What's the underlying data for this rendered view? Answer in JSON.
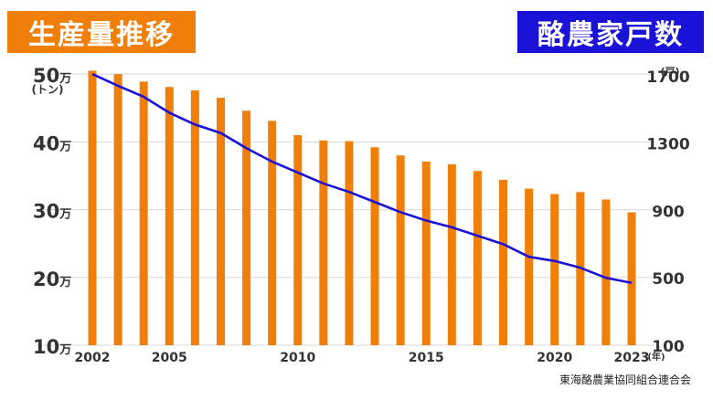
{
  "titles": {
    "left": "生産量推移",
    "right": "酪農家戸数"
  },
  "units": {
    "left": "(トン)",
    "right": "(戸)",
    "x": "(年)",
    "left_tick_suffix": "万"
  },
  "source": "東海酪農業協同組合連合会",
  "colors": {
    "bar": "#f07f0a",
    "line": "#1a12d6",
    "grid": "#d8d8d8",
    "left_title_bg": "#f07f0a",
    "right_title_bg": "#1a12d6"
  },
  "chart_data": {
    "type": "bar+line",
    "x": [
      2002,
      2003,
      2004,
      2005,
      2006,
      2007,
      2008,
      2009,
      2010,
      2011,
      2012,
      2013,
      2014,
      2015,
      2016,
      2017,
      2018,
      2019,
      2020,
      2021,
      2022,
      2023
    ],
    "x_tick_labels": [
      "2002",
      "2005",
      "2010",
      "2015",
      "2020",
      "2023"
    ],
    "series": [
      {
        "type": "bar",
        "axis": "left",
        "values": [
          50.5,
          50.0,
          48.9,
          48.1,
          47.6,
          46.5,
          44.6,
          43.1,
          41.0,
          40.2,
          40.1,
          39.2,
          38.0,
          37.1,
          36.7,
          35.7,
          34.4,
          33.1,
          32.3,
          32.6,
          31.5,
          29.6
        ]
      },
      {
        "type": "line",
        "axis": "right",
        "values": [
          1710,
          1640,
          1575,
          1480,
          1410,
          1360,
          1270,
          1190,
          1125,
          1060,
          1010,
          950,
          890,
          840,
          800,
          750,
          700,
          625,
          600,
          560,
          500,
          470
        ]
      }
    ],
    "y_left": {
      "ticks": [
        50,
        40,
        30,
        20,
        10
      ],
      "range": [
        10,
        51.5
      ]
    },
    "y_right": {
      "ticks": [
        1700,
        1300,
        900,
        500,
        100
      ],
      "range": [
        100,
        1770
      ]
    },
    "grid": true
  }
}
